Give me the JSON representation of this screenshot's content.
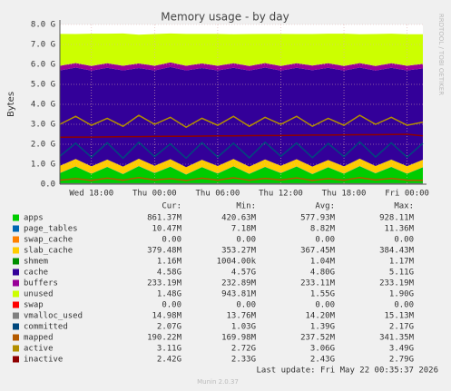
{
  "chart_data": {
    "type": "munin-area",
    "title": "Memory usage - by day",
    "y_label": "Bytes",
    "side_note": "RRDTOOL / TOBI OETIKER",
    "footer_update": "Last update: Fri May 22 00:35:37 2026",
    "footer_version": "Munin 2.0.37",
    "categories": [
      null,
      null,
      "Wed 18:00",
      null,
      null,
      null,
      "Thu 00:00",
      null,
      null,
      null,
      "Thu 06:00",
      null,
      null,
      null,
      "Thu 12:00",
      null,
      null,
      null,
      "Thu 18:00",
      null,
      null,
      null,
      "Fri 00:00",
      null
    ],
    "ylim": [
      0,
      8
    ],
    "yticks": [
      {
        "value": 0,
        "label": "0.0"
      },
      {
        "value": 1,
        "label": "1.0 G"
      },
      {
        "value": 2,
        "label": "2.0 G"
      },
      {
        "value": 3,
        "label": "3.0 G"
      },
      {
        "value": 4,
        "label": "4.0 G"
      },
      {
        "value": 5,
        "label": "5.0 G"
      },
      {
        "value": 6,
        "label": "6.0 G"
      },
      {
        "value": 7,
        "label": "7.0 G"
      },
      {
        "value": 8,
        "label": "8.0 G"
      }
    ],
    "grid": true,
    "legend_columns": [
      "Cur:",
      "Min:",
      "Avg:",
      "Max:"
    ],
    "series": [
      {
        "name": "apps",
        "color": "#00CC00",
        "style": "area",
        "values": [
          0.55,
          0.88,
          0.52,
          0.86,
          0.5,
          0.9,
          0.55,
          0.87,
          0.48,
          0.85,
          0.53,
          0.89,
          0.51,
          0.86,
          0.55,
          0.88,
          0.5,
          0.84,
          0.52,
          0.9,
          0.54,
          0.86,
          0.52,
          0.84
        ]
      },
      {
        "name": "page_tables",
        "color": "#0066B3",
        "style": "area",
        "values": [
          0.01,
          0.01,
          0.01,
          0.01,
          0.01,
          0.01,
          0.01,
          0.01,
          0.01,
          0.01,
          0.01,
          0.01,
          0.01,
          0.01,
          0.01,
          0.01,
          0.01,
          0.01,
          0.01,
          0.01,
          0.01,
          0.01,
          0.01,
          0.01
        ]
      },
      {
        "name": "swap_cache",
        "color": "#FF8000",
        "style": "area",
        "values": [
          0,
          0,
          0,
          0,
          0,
          0,
          0,
          0,
          0,
          0,
          0,
          0,
          0,
          0,
          0,
          0,
          0,
          0,
          0,
          0,
          0,
          0,
          0,
          0
        ]
      },
      {
        "name": "slab_cache",
        "color": "#FFCC00",
        "style": "area",
        "values": [
          0.36,
          0.37,
          0.36,
          0.36,
          0.37,
          0.36,
          0.36,
          0.37,
          0.36,
          0.36,
          0.37,
          0.36,
          0.36,
          0.37,
          0.36,
          0.36,
          0.37,
          0.36,
          0.36,
          0.37,
          0.36,
          0.36,
          0.37,
          0.37
        ]
      },
      {
        "name": "shmem",
        "color": "#008F00",
        "style": "area",
        "values": [
          0.001,
          0.001,
          0.001,
          0.001,
          0.001,
          0.001,
          0.001,
          0.001,
          0.001,
          0.001,
          0.001,
          0.001,
          0.001,
          0.001,
          0.001,
          0.001,
          0.001,
          0.001,
          0.001,
          0.001,
          0.001,
          0.001,
          0.001,
          0.001
        ]
      },
      {
        "name": "cache",
        "color": "#330099",
        "style": "area",
        "values": [
          4.78,
          4.58,
          4.8,
          4.6,
          4.82,
          4.55,
          4.78,
          4.62,
          4.85,
          4.6,
          4.79,
          4.57,
          4.81,
          4.6,
          4.77,
          4.58,
          4.83,
          4.62,
          4.8,
          4.56,
          4.78,
          4.6,
          4.8,
          4.58
        ]
      },
      {
        "name": "buffers",
        "color": "#990099",
        "style": "area",
        "values": [
          0.23,
          0.23,
          0.23,
          0.23,
          0.23,
          0.23,
          0.23,
          0.23,
          0.23,
          0.23,
          0.23,
          0.23,
          0.23,
          0.23,
          0.23,
          0.23,
          0.23,
          0.23,
          0.23,
          0.23,
          0.23,
          0.23,
          0.23,
          0.23
        ]
      },
      {
        "name": "unused",
        "color": "#CCFF00",
        "style": "area",
        "values": [
          1.6,
          1.45,
          1.62,
          1.48,
          1.62,
          1.44,
          1.59,
          1.45,
          1.6,
          1.48,
          1.6,
          1.45,
          1.6,
          1.46,
          1.61,
          1.46,
          1.58,
          1.48,
          1.62,
          1.44,
          1.6,
          1.48,
          1.58,
          1.48
        ]
      },
      {
        "name": "swap",
        "color": "#FF0000",
        "style": "area",
        "values": [
          0,
          0,
          0,
          0,
          0,
          0,
          0,
          0,
          0,
          0,
          0,
          0,
          0,
          0,
          0,
          0,
          0,
          0,
          0,
          0,
          0,
          0,
          0,
          0
        ]
      },
      {
        "name": "vmalloc_used",
        "color": "#808080",
        "style": "line",
        "values": [
          0.015,
          0.015,
          0.015,
          0.015,
          0.015,
          0.015,
          0.015,
          0.015,
          0.015,
          0.015,
          0.015,
          0.015,
          0.015,
          0.015,
          0.015,
          0.015,
          0.015,
          0.015,
          0.015,
          0.015,
          0.015,
          0.015,
          0.015,
          0.015
        ]
      },
      {
        "name": "committed",
        "color": "#00487D",
        "style": "line",
        "values": [
          1.4,
          2.05,
          1.35,
          2.07,
          1.3,
          2.1,
          1.38,
          2.02,
          1.3,
          2.08,
          1.36,
          2.05,
          1.32,
          2.1,
          1.4,
          2.06,
          1.33,
          2.04,
          1.38,
          2.12,
          1.36,
          2.07,
          1.35,
          2.05
        ]
      },
      {
        "name": "mapped",
        "color": "#B35A00",
        "style": "line",
        "values": [
          0.2,
          0.28,
          0.19,
          0.3,
          0.2,
          0.33,
          0.21,
          0.28,
          0.19,
          0.3,
          0.2,
          0.32,
          0.2,
          0.29,
          0.21,
          0.31,
          0.19,
          0.28,
          0.2,
          0.33,
          0.21,
          0.29,
          0.2,
          0.19
        ]
      },
      {
        "name": "active",
        "color": "#B38F00",
        "style": "line",
        "values": [
          3.0,
          3.4,
          2.95,
          3.3,
          2.9,
          3.45,
          3.0,
          3.35,
          2.85,
          3.3,
          2.95,
          3.4,
          2.9,
          3.35,
          3.0,
          3.4,
          2.9,
          3.3,
          2.95,
          3.45,
          3.0,
          3.35,
          2.95,
          3.11
        ]
      },
      {
        "name": "inactive",
        "color": "#8F0000",
        "style": "line",
        "values": [
          2.35,
          2.36,
          2.36,
          2.37,
          2.38,
          2.38,
          2.39,
          2.4,
          2.4,
          2.41,
          2.42,
          2.42,
          2.43,
          2.44,
          2.44,
          2.45,
          2.46,
          2.46,
          2.47,
          2.48,
          2.48,
          2.49,
          2.5,
          2.42
        ]
      }
    ],
    "legend_values": [
      [
        "861.37M",
        "420.63M",
        "577.93M",
        "928.11M"
      ],
      [
        "10.47M",
        "7.18M",
        "8.82M",
        "11.36M"
      ],
      [
        "0.00",
        "0.00",
        "0.00",
        "0.00"
      ],
      [
        "379.48M",
        "353.27M",
        "367.45M",
        "384.43M"
      ],
      [
        "1.16M",
        "1004.00k",
        "1.04M",
        "1.17M"
      ],
      [
        "4.58G",
        "4.57G",
        "4.80G",
        "5.11G"
      ],
      [
        "233.19M",
        "232.89M",
        "233.11M",
        "233.19M"
      ],
      [
        "1.48G",
        "943.81M",
        "1.55G",
        "1.90G"
      ],
      [
        "0.00",
        "0.00",
        "0.00",
        "0.00"
      ],
      [
        "14.98M",
        "13.76M",
        "14.20M",
        "15.13M"
      ],
      [
        "2.07G",
        "1.03G",
        "1.39G",
        "2.17G"
      ],
      [
        "190.22M",
        "169.98M",
        "237.52M",
        "341.35M"
      ],
      [
        "3.11G",
        "2.72G",
        "3.06G",
        "3.49G"
      ],
      [
        "2.42G",
        "2.33G",
        "2.43G",
        "2.79G"
      ]
    ]
  }
}
